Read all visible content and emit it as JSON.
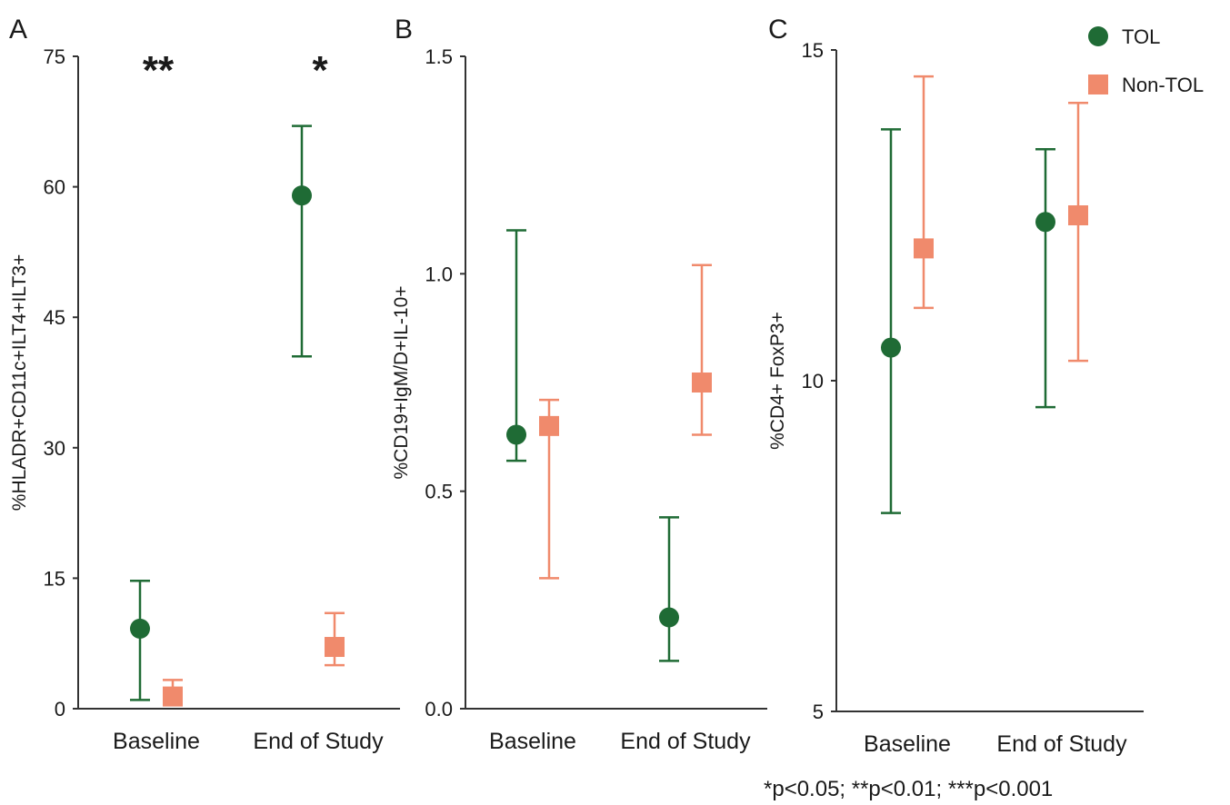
{
  "colors": {
    "tol": "#1f6b35",
    "nontol": "#f08a6c",
    "axis": "#333333",
    "text": "#1a1a1a"
  },
  "legend": {
    "placement": "top-right",
    "items": [
      {
        "label": "TOL",
        "marker": "circle",
        "color": "#1f6b35"
      },
      {
        "label": "Non-TOL",
        "marker": "square",
        "color": "#f08a6c"
      }
    ]
  },
  "footnote": "*p<0.05; **p<0.01; ***p<0.001",
  "chart_data": [
    {
      "panel": "A",
      "type": "scatter",
      "ylabel": "%HLADR+CD11c+ILT4+ILT3+",
      "ylim": [
        0,
        75
      ],
      "yticks": [
        0,
        15,
        30,
        45,
        60,
        75
      ],
      "yticklabels": [
        "0",
        "15",
        "30",
        "45",
        "60",
        "75"
      ],
      "categories": [
        "Baseline",
        "End of Study"
      ],
      "annotations": [
        "**",
        "*"
      ],
      "series": [
        {
          "name": "TOL",
          "marker": "circle",
          "values": [
            9.2,
            59.0
          ],
          "lower": [
            1.0,
            40.5
          ],
          "upper": [
            14.7,
            67.0
          ]
        },
        {
          "name": "Non-TOL",
          "marker": "square",
          "values": [
            1.4,
            7.1
          ],
          "lower": [
            0.4,
            5.0
          ],
          "upper": [
            3.3,
            11.0
          ]
        }
      ]
    },
    {
      "panel": "B",
      "type": "scatter",
      "ylabel": "%CD19+IgM/D+IL-10+",
      "ylim": [
        0,
        1.5
      ],
      "yticks": [
        0,
        0.5,
        1.0,
        1.5
      ],
      "yticklabels": [
        "0.0",
        "0.5",
        "1.0",
        "1.5"
      ],
      "categories": [
        "Baseline",
        "End of Study"
      ],
      "annotations": [
        "",
        ""
      ],
      "series": [
        {
          "name": "TOL",
          "marker": "circle",
          "values": [
            0.63,
            0.21
          ],
          "lower": [
            0.57,
            0.11
          ],
          "upper": [
            1.1,
            0.44
          ]
        },
        {
          "name": "Non-TOL",
          "marker": "square",
          "values": [
            0.65,
            0.75
          ],
          "lower": [
            0.3,
            0.63
          ],
          "upper": [
            0.71,
            1.02
          ]
        }
      ]
    },
    {
      "panel": "C",
      "type": "scatter",
      "ylabel": "%CD4+ FoxP3+",
      "ylim": [
        5,
        15
      ],
      "yticks": [
        5,
        10,
        15
      ],
      "yticklabels": [
        "5",
        "10",
        "15"
      ],
      "categories": [
        "Baseline",
        "End of Study"
      ],
      "annotations": [
        "",
        ""
      ],
      "series": [
        {
          "name": "TOL",
          "marker": "circle",
          "values": [
            10.5,
            12.4
          ],
          "lower": [
            8.0,
            9.6
          ],
          "upper": [
            13.8,
            13.5
          ]
        },
        {
          "name": "Non-TOL",
          "marker": "square",
          "values": [
            12.0,
            12.5
          ],
          "lower": [
            11.1,
            10.3
          ],
          "upper": [
            14.6,
            14.2
          ]
        }
      ]
    }
  ]
}
